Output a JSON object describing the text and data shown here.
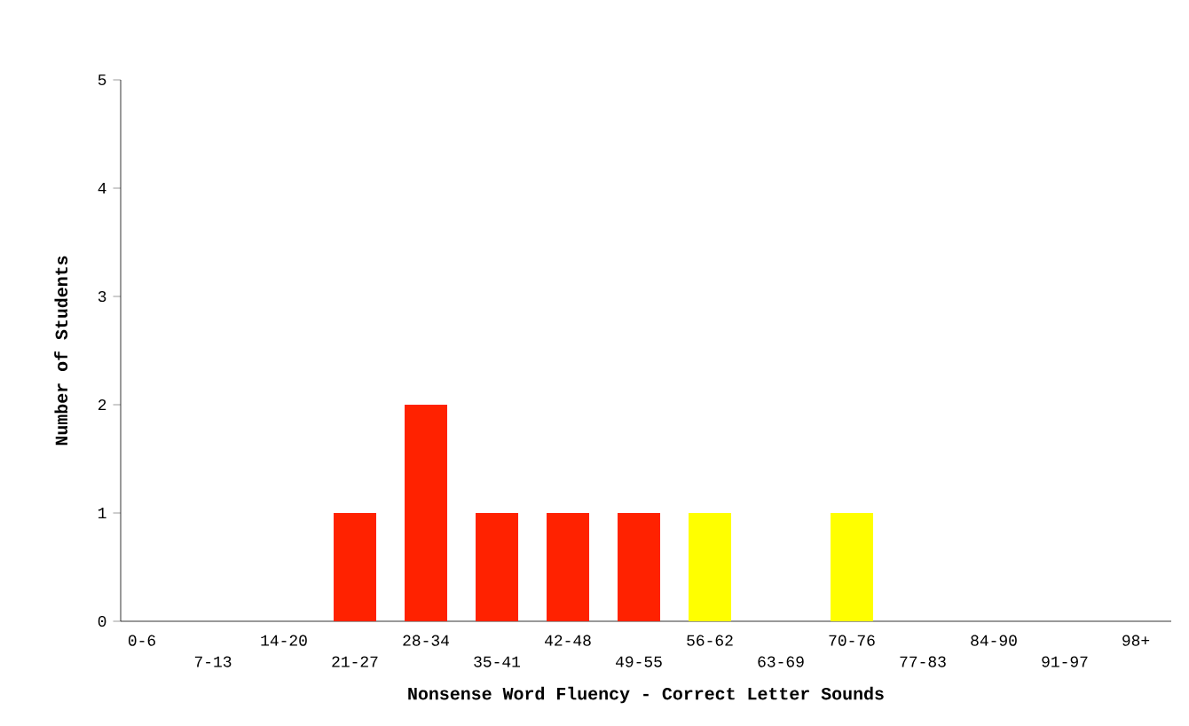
{
  "chart_data": {
    "type": "bar",
    "xlabel": "Nonsense Word Fluency - Correct Letter Sounds",
    "ylabel": "Number of Students",
    "categories": [
      "0-6",
      "7-13",
      "14-20",
      "21-27",
      "28-34",
      "35-41",
      "42-48",
      "49-55",
      "56-62",
      "63-69",
      "70-76",
      "77-83",
      "84-90",
      "91-97",
      "98+"
    ],
    "values": [
      0,
      0,
      0,
      1,
      2,
      1,
      1,
      1,
      1,
      0,
      1,
      0,
      0,
      0,
      0
    ],
    "colors": [
      "#ff2200",
      "#ff2200",
      "#ff2200",
      "#ff2200",
      "#ff2200",
      "#ff2200",
      "#ff2200",
      "#ff2200",
      "#ffff00",
      "#ff2200",
      "#ffff00",
      "#ff2200",
      "#ff2200",
      "#ff2200",
      "#ff2200"
    ],
    "ylim": [
      0,
      5
    ],
    "yticks": [
      0,
      1,
      2,
      3,
      4,
      5
    ]
  }
}
